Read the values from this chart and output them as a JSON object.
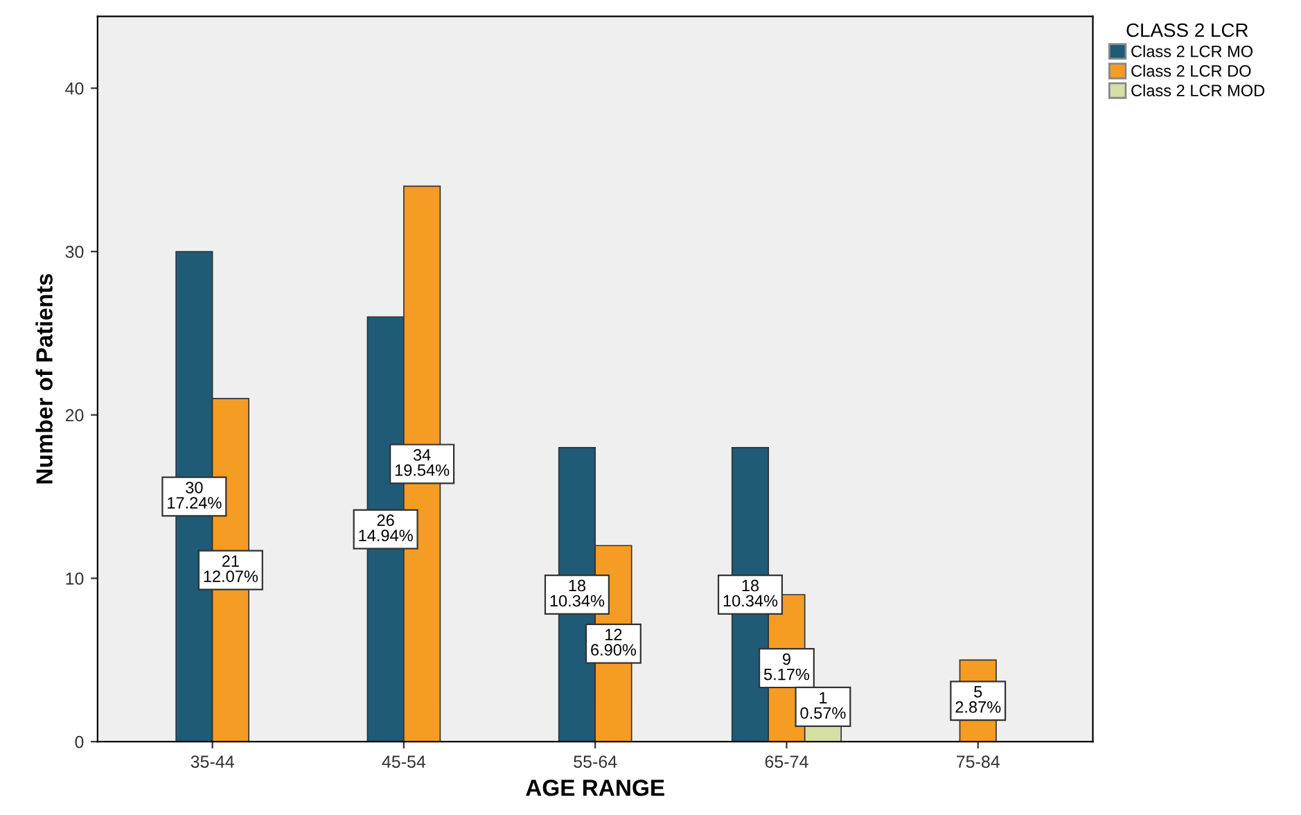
{
  "chart_data": {
    "type": "bar",
    "xlabel": "AGE RANGE",
    "ylabel": "Number of Patients",
    "legend_title": "CLASS 2 LCR",
    "categories": [
      "35-44",
      "45-54",
      "55-64",
      "65-74",
      "75-84"
    ],
    "series": [
      {
        "name": "Class 2 LCR MO",
        "color": "#1f5a76",
        "values": [
          30,
          26,
          18,
          18,
          null
        ],
        "value_labels": [
          "30\n17.24%",
          "26\n14.94%",
          "18\n10.34%",
          "18\n10.34%",
          null
        ]
      },
      {
        "name": "Class 2 LCR DO",
        "color": "#f59c25",
        "values": [
          21,
          34,
          12,
          9,
          5
        ],
        "value_labels": [
          "21\n12.07%",
          "34\n19.54%",
          "12\n6.90%",
          "9\n5.17%",
          "5\n2.87%"
        ]
      },
      {
        "name": "Class 2 LCR MOD",
        "color": "#d5e0a5",
        "values": [
          null,
          null,
          null,
          1,
          null
        ],
        "value_labels": [
          null,
          null,
          null,
          "1\n0.57%",
          null
        ]
      }
    ],
    "ylim": [
      0,
      44.4
    ],
    "yticks": [
      0,
      10,
      20,
      30,
      40
    ],
    "grid": false,
    "legend": "top right"
  }
}
